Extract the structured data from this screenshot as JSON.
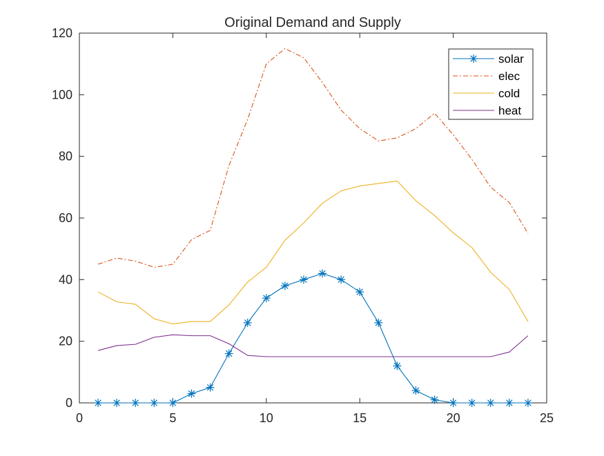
{
  "chart_data": {
    "type": "line",
    "title": "Original Demand and Supply",
    "xlabel": "",
    "ylabel": "",
    "xlim": [
      0,
      25
    ],
    "ylim": [
      0,
      120
    ],
    "xticks": [
      0,
      5,
      10,
      15,
      20,
      25
    ],
    "yticks": [
      0,
      20,
      40,
      60,
      80,
      100,
      120
    ],
    "grid": false,
    "legend_position": "top-right",
    "x": [
      1,
      2,
      3,
      4,
      5,
      6,
      7,
      8,
      9,
      10,
      11,
      12,
      13,
      14,
      15,
      16,
      17,
      18,
      19,
      20,
      21,
      22,
      23,
      24
    ],
    "series": [
      {
        "name": "solar",
        "color": "#0072BD",
        "line_style": "solid",
        "marker": "asterisk",
        "values": [
          0,
          0,
          0,
          0,
          0,
          3,
          5,
          16,
          26,
          34,
          38,
          40,
          42,
          40,
          36,
          26,
          12,
          4,
          1,
          0,
          0,
          0,
          0,
          0
        ]
      },
      {
        "name": "elec",
        "color": "#D95319",
        "line_style": "dash-dot",
        "marker": "none",
        "values": [
          45,
          47,
          46,
          44,
          45,
          53,
          56,
          77,
          92,
          110,
          115,
          112,
          104,
          95,
          89,
          85,
          86,
          89,
          94,
          87,
          79,
          70,
          65,
          55
        ]
      },
      {
        "name": "cold",
        "color": "#EDB120",
        "line_style": "solid",
        "marker": "none",
        "values": [
          36,
          32.8,
          32,
          27.3,
          25.6,
          26.4,
          26.4,
          31.8,
          39.2,
          44,
          52.8,
          58.4,
          64.8,
          68.8,
          70.4,
          71.2,
          72,
          65.6,
          60.8,
          55.2,
          50.4,
          42.4,
          36.8,
          26.4
        ]
      },
      {
        "name": "heat",
        "color": "#7E2F8E",
        "line_style": "solid",
        "marker": "none",
        "values": [
          17,
          18.6,
          19,
          21.3,
          22.1,
          21.8,
          21.8,
          19.2,
          15.4,
          15,
          15,
          15,
          15,
          15,
          15,
          15,
          15,
          15,
          15,
          15,
          15,
          15,
          16.5,
          21.8
        ]
      }
    ]
  }
}
